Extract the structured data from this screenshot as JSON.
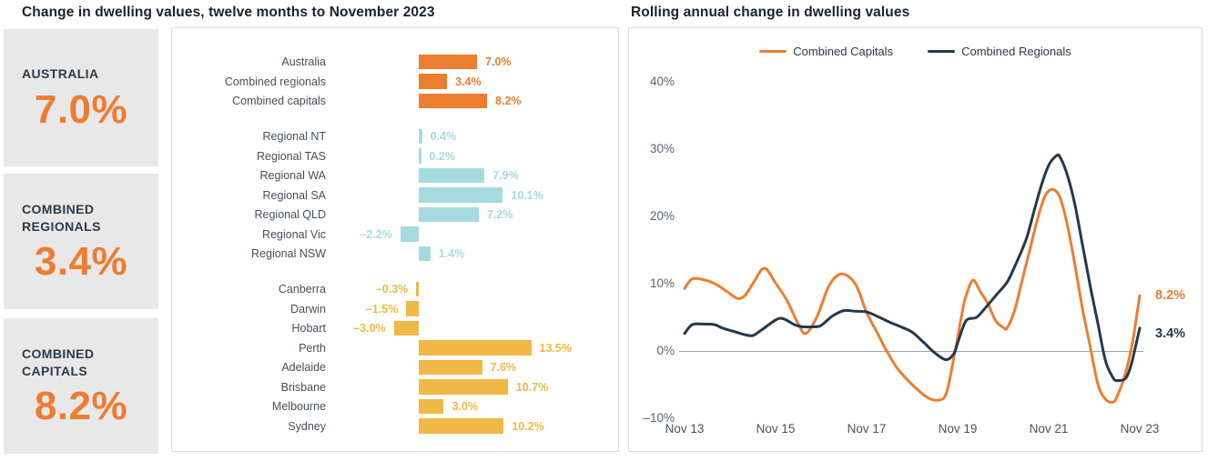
{
  "left_title": "Change in dwelling values, twelve months to November 2023",
  "right_title": "Rolling annual change in dwelling values",
  "colors": {
    "orange": "#ED7D31",
    "teal": "#A5DBE0",
    "gold": "#F0B844",
    "navy": "#24394B",
    "box_bg": "#E8E8E9",
    "panel_border": "#DCDCDE",
    "axis_text": "#59646E"
  },
  "summary_boxes": [
    {
      "label": "AUSTRALIA",
      "value": "7.0%"
    },
    {
      "label": "COMBINED\nREGIONALS",
      "value": "3.4%"
    },
    {
      "label": "COMBINED\nCAPITALS",
      "value": "8.2%"
    }
  ],
  "chart_data": [
    {
      "type": "bar",
      "orientation": "horizontal",
      "title": "Change in dwelling values, twelve months to November 2023",
      "unit": "%",
      "zero_baseline": true,
      "groups": [
        {
          "name": "national",
          "color": "#ED7D31",
          "items": [
            {
              "label": "Australia",
              "value": 7.0,
              "display": "7.0%"
            },
            {
              "label": "Combined regionals",
              "value": 3.4,
              "display": "3.4%"
            },
            {
              "label": "Combined capitals",
              "value": 8.2,
              "display": "8.2%"
            }
          ]
        },
        {
          "name": "regionals",
          "color": "#A5DBE0",
          "items": [
            {
              "label": "Regional NT",
              "value": 0.4,
              "display": "0.4%"
            },
            {
              "label": "Regional TAS",
              "value": 0.2,
              "display": "0.2%"
            },
            {
              "label": "Regional WA",
              "value": 7.9,
              "display": "7.9%"
            },
            {
              "label": "Regional SA",
              "value": 10.1,
              "display": "10.1%"
            },
            {
              "label": "Regional QLD",
              "value": 7.2,
              "display": "7.2%"
            },
            {
              "label": "Regional Vic",
              "value": -2.2,
              "display": "–2.2%"
            },
            {
              "label": "Regional NSW",
              "value": 1.4,
              "display": "1.4%"
            }
          ]
        },
        {
          "name": "capitals",
          "color": "#F0B844",
          "items": [
            {
              "label": "Canberra",
              "value": -0.3,
              "display": "–0.3%"
            },
            {
              "label": "Darwin",
              "value": -1.5,
              "display": "–1.5%"
            },
            {
              "label": "Hobart",
              "value": -3.0,
              "display": "–3.0%"
            },
            {
              "label": "Perth",
              "value": 13.5,
              "display": "13.5%"
            },
            {
              "label": "Adelaide",
              "value": 7.6,
              "display": "7.6%"
            },
            {
              "label": "Brisbane",
              "value": 10.7,
              "display": "10.7%"
            },
            {
              "label": "Melbourne",
              "value": 3.0,
              "display": "3.0%"
            },
            {
              "label": "Sydney",
              "value": 10.2,
              "display": "10.2%"
            }
          ]
        }
      ]
    },
    {
      "type": "line",
      "title": "Rolling annual change in dwelling values",
      "unit": "%",
      "ylim": [
        -10,
        40
      ],
      "grid": "zero-line-only",
      "legend_position": "top",
      "y_ticks": [
        {
          "label": "40%",
          "value": 40
        },
        {
          "label": "30%",
          "value": 30
        },
        {
          "label": "20%",
          "value": 20
        },
        {
          "label": "10%",
          "value": 10
        },
        {
          "label": "0%",
          "value": 0
        },
        {
          "label": "–10%",
          "value": -10
        }
      ],
      "x_ticks": [
        {
          "label": "Nov 13",
          "month": 0
        },
        {
          "label": "Nov 15",
          "month": 24
        },
        {
          "label": "Nov 17",
          "month": 48
        },
        {
          "label": "Nov 19",
          "month": 72
        },
        {
          "label": "Nov 21",
          "month": 96
        },
        {
          "label": "Nov 23",
          "month": 120
        }
      ],
      "x_start": "Nov 2013",
      "x_end": "Nov 2023",
      "series": [
        {
          "name": "Combined Capitals",
          "color": "#ED7D31",
          "end_label": "8.2%",
          "points": [
            [
              0,
              9.3
            ],
            [
              2,
              10.7
            ],
            [
              5,
              10.6
            ],
            [
              8,
              10.0
            ],
            [
              11,
              8.9
            ],
            [
              14,
              7.8
            ],
            [
              16,
              8.3
            ],
            [
              18,
              10.0
            ],
            [
              21,
              12.3
            ],
            [
              24,
              10.1
            ],
            [
              27,
              7.5
            ],
            [
              30,
              4.0
            ],
            [
              32,
              2.6
            ],
            [
              35,
              5.2
            ],
            [
              38,
              9.6
            ],
            [
              41,
              11.4
            ],
            [
              44,
              10.7
            ],
            [
              46,
              8.8
            ],
            [
              48,
              5.7
            ],
            [
              51,
              2.5
            ],
            [
              53,
              0.3
            ],
            [
              56,
              -2.5
            ],
            [
              60,
              -5.0
            ],
            [
              64,
              -6.9
            ],
            [
              67,
              -7.3
            ],
            [
              69,
              -6.3
            ],
            [
              71,
              -1.0
            ],
            [
              72,
              2.0
            ],
            [
              73,
              5.2
            ],
            [
              74,
              7.8
            ],
            [
              76,
              10.5
            ],
            [
              78,
              8.8
            ],
            [
              80,
              7.0
            ],
            [
              82,
              4.5
            ],
            [
              84,
              3.5
            ],
            [
              85,
              3.4
            ],
            [
              87,
              6.0
            ],
            [
              89,
              10.5
            ],
            [
              91,
              15.0
            ],
            [
              93,
              19.5
            ],
            [
              95,
              23.0
            ],
            [
              97,
              24.0
            ],
            [
              99,
              22.8
            ],
            [
              101,
              18.5
            ],
            [
              103,
              12.5
            ],
            [
              105,
              6.0
            ],
            [
              107,
              0.5
            ],
            [
              109,
              -5.0
            ],
            [
              111,
              -7.2
            ],
            [
              113,
              -7.6
            ],
            [
              114,
              -6.8
            ],
            [
              116,
              -3.8
            ],
            [
              118,
              1.0
            ],
            [
              120,
              8.2
            ]
          ]
        },
        {
          "name": "Combined Regionals",
          "color": "#24394B",
          "end_label": "3.4%",
          "points": [
            [
              0,
              2.6
            ],
            [
              2,
              3.9
            ],
            [
              5,
              4.0
            ],
            [
              8,
              3.9
            ],
            [
              10,
              3.4
            ],
            [
              13,
              2.9
            ],
            [
              16,
              2.4
            ],
            [
              18,
              2.3
            ],
            [
              20,
              3.0
            ],
            [
              24,
              4.6
            ],
            [
              26,
              4.8
            ],
            [
              29,
              3.9
            ],
            [
              31,
              3.6
            ],
            [
              34,
              3.6
            ],
            [
              36,
              3.8
            ],
            [
              39,
              5.2
            ],
            [
              42,
              6.0
            ],
            [
              45,
              5.9
            ],
            [
              48,
              5.8
            ],
            [
              51,
              5.1
            ],
            [
              54,
              4.3
            ],
            [
              57,
              3.6
            ],
            [
              60,
              2.8
            ],
            [
              63,
              1.3
            ],
            [
              66,
              -0.3
            ],
            [
              69,
              -1.3
            ],
            [
              71,
              -0.4
            ],
            [
              72,
              1.2
            ],
            [
              73,
              2.9
            ],
            [
              74,
              4.3
            ],
            [
              75,
              4.8
            ],
            [
              77,
              5.0
            ],
            [
              79,
              6.2
            ],
            [
              82,
              8.2
            ],
            [
              85,
              10.2
            ],
            [
              87,
              12.5
            ],
            [
              90,
              16.5
            ],
            [
              92,
              20.5
            ],
            [
              94,
              24.5
            ],
            [
              96,
              27.6
            ],
            [
              98,
              29.0
            ],
            [
              99,
              28.8
            ],
            [
              101,
              26.0
            ],
            [
              103,
              21.5
            ],
            [
              105,
              15.5
            ],
            [
              107,
              9.5
            ],
            [
              109,
              4.0
            ],
            [
              111,
              -1.5
            ],
            [
              113,
              -4.0
            ],
            [
              114,
              -4.4
            ],
            [
              116,
              -4.2
            ],
            [
              117,
              -3.3
            ],
            [
              118,
              -1.5
            ],
            [
              120,
              3.4
            ]
          ]
        }
      ]
    }
  ]
}
